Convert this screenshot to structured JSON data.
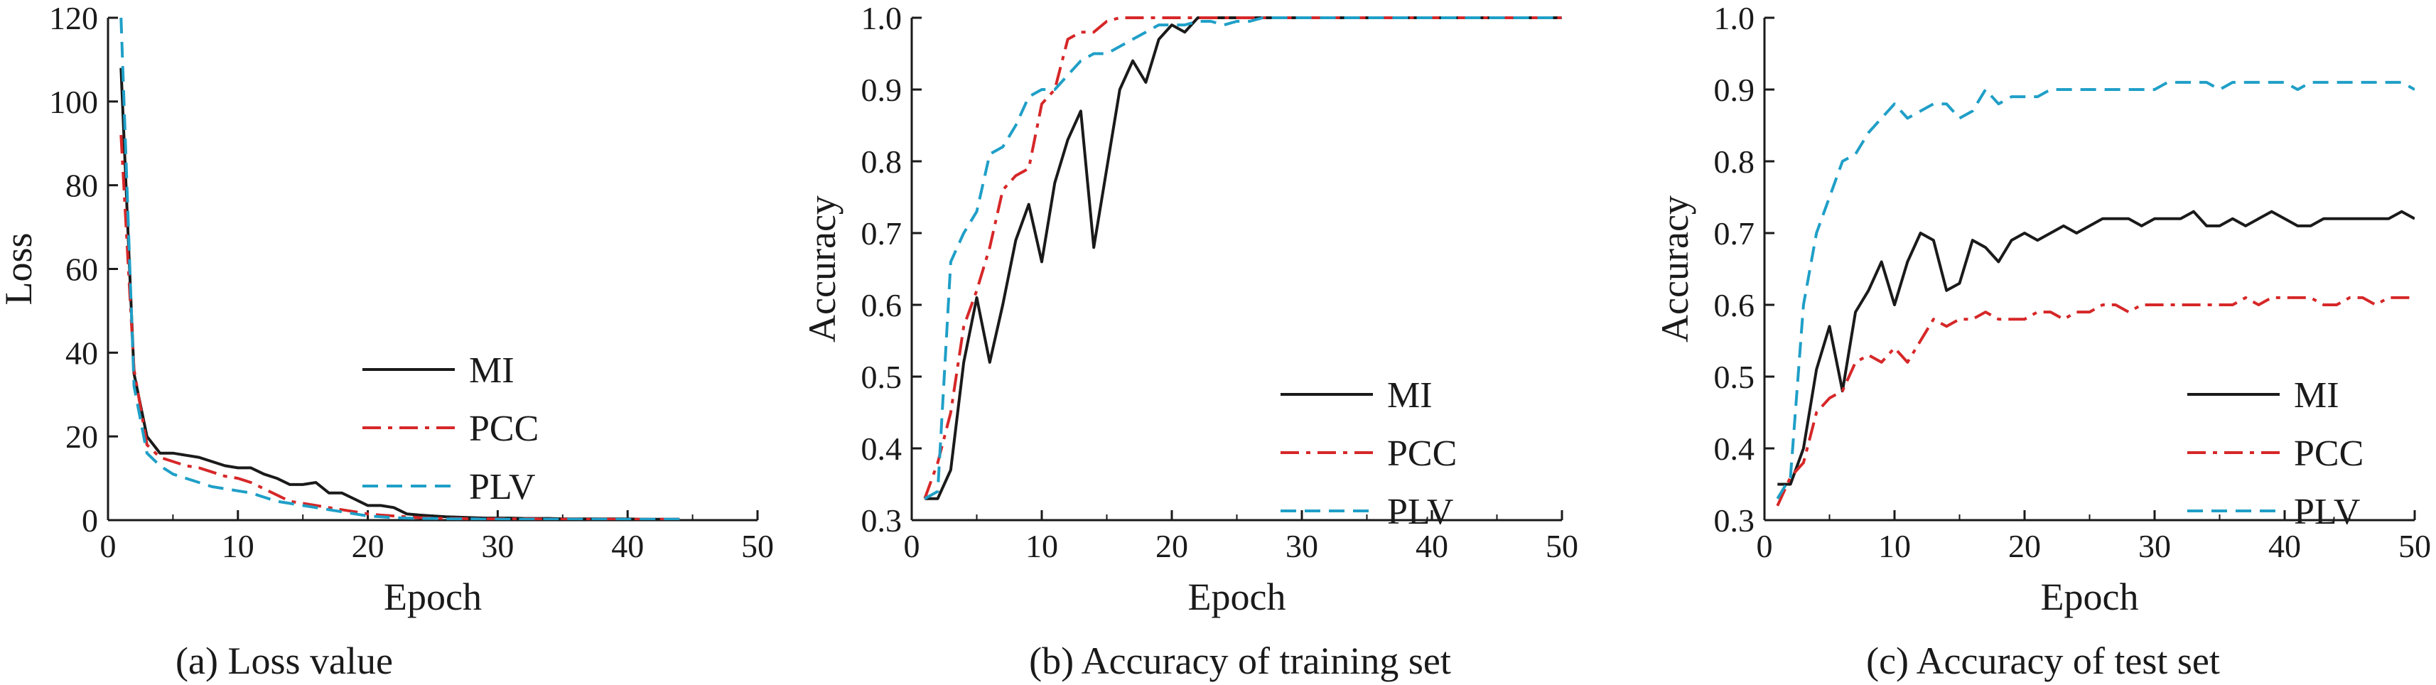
{
  "chart_data": [
    {
      "type": "line",
      "caption": "(a) Loss value",
      "xlabel": "Epoch",
      "ylabel": "Loss",
      "xlim": [
        0,
        50
      ],
      "ylim": [
        0,
        120
      ],
      "xticks": [
        0,
        10,
        20,
        30,
        40,
        50
      ],
      "yticks": [
        0,
        20,
        40,
        60,
        80,
        100,
        120
      ],
      "grid": false,
      "legend": "bottom-right",
      "series": [
        {
          "name": "MI",
          "color": "#1a1a1a",
          "dash": "solid",
          "x": [
            1,
            2,
            3,
            4,
            5,
            6,
            7,
            8,
            9,
            10,
            11,
            12,
            13,
            14,
            15,
            16,
            17,
            18,
            19,
            20,
            21,
            22,
            23,
            24,
            25,
            26,
            27,
            28,
            29,
            30,
            31,
            32,
            33,
            34,
            35,
            36,
            37,
            38,
            39,
            40,
            41,
            42,
            43,
            44
          ],
          "y": [
            108,
            35,
            20,
            16,
            16,
            15.5,
            15,
            14,
            13,
            12.5,
            12.5,
            11,
            10,
            8.5,
            8.5,
            9,
            6.5,
            6.5,
            5,
            3.5,
            3.5,
            3,
            1.5,
            1.2,
            1,
            0.8,
            0.7,
            0.6,
            0.5,
            0.5,
            0.5,
            0.4,
            0.4,
            0.4,
            0.3,
            0.3,
            0.3,
            0.3,
            0.3,
            0.3,
            0.2,
            0.2,
            0.2,
            0.2
          ]
        },
        {
          "name": "PCC",
          "color": "#d62728",
          "dash": "dashdot",
          "x": [
            1,
            2,
            3,
            4,
            5,
            6,
            7,
            8,
            9,
            10,
            11,
            12,
            13,
            14,
            15,
            16,
            17,
            18,
            19,
            20,
            21,
            22,
            23,
            24,
            25,
            26,
            27,
            28,
            29,
            30,
            31,
            32,
            33,
            34,
            35,
            36,
            37,
            38,
            39,
            40,
            41,
            42,
            43,
            44
          ],
          "y": [
            92,
            36,
            18,
            15,
            14,
            13,
            12.5,
            11.5,
            10.5,
            10,
            9,
            7.5,
            6,
            4.5,
            4,
            3.5,
            3,
            2.5,
            2,
            1.5,
            1.2,
            1,
            0.8,
            0.6,
            0.5,
            0.4,
            0.4,
            0.3,
            0.3,
            0.3,
            0.3,
            0.3,
            0.3,
            0.2,
            0.2,
            0.2,
            0.2,
            0.2,
            0.2,
            0.2,
            0.2,
            0.2,
            0.2,
            0.2
          ]
        },
        {
          "name": "PLV",
          "color": "#1f9fc7",
          "dash": "dashed",
          "x": [
            1,
            2,
            3,
            4,
            5,
            6,
            7,
            8,
            9,
            10,
            11,
            12,
            13,
            14,
            15,
            16,
            17,
            18,
            19,
            20,
            21,
            22,
            23,
            24,
            25,
            26,
            27,
            28,
            29,
            30,
            31,
            32,
            33,
            34,
            35,
            36,
            37,
            38,
            39,
            40,
            41,
            42,
            43,
            44
          ],
          "y": [
            120,
            32,
            16,
            13,
            11,
            10,
            9,
            8,
            7.5,
            7,
            6.5,
            5.5,
            4.5,
            4,
            3.5,
            3,
            2.5,
            2,
            1.5,
            1,
            0.8,
            0.6,
            0.5,
            0.4,
            0.4,
            0.3,
            0.3,
            0.3,
            0.2,
            0.2,
            0.2,
            0.2,
            0.2,
            0.2,
            0.2,
            0.2,
            0.2,
            0.2,
            0.2,
            0.2,
            0.2,
            0.2,
            0.2,
            0.2
          ]
        }
      ]
    },
    {
      "type": "line",
      "caption": "(b) Accuracy of training set",
      "xlabel": "Epoch",
      "ylabel": "Accuracy",
      "xlim": [
        0,
        50
      ],
      "ylim": [
        0.3,
        1.0
      ],
      "xticks": [
        0,
        10,
        20,
        30,
        40,
        50
      ],
      "yticks": [
        "0.3",
        "0.4",
        "0.5",
        "0.6",
        "0.7",
        "0.8",
        "0.9",
        "1.0"
      ],
      "grid": false,
      "legend": "bottom-right",
      "series": [
        {
          "name": "MI",
          "color": "#1a1a1a",
          "dash": "solid",
          "x": [
            1,
            2,
            3,
            4,
            5,
            6,
            7,
            8,
            9,
            10,
            11,
            12,
            13,
            14,
            15,
            16,
            17,
            18,
            19,
            20,
            21,
            22,
            23,
            24,
            25,
            26,
            27,
            28,
            29,
            30,
            31,
            32,
            33,
            34,
            35,
            36,
            37,
            38,
            39,
            40,
            41,
            42,
            43,
            44,
            45,
            46,
            47,
            48,
            49,
            50
          ],
          "y": [
            0.33,
            0.33,
            0.37,
            0.52,
            0.61,
            0.52,
            0.6,
            0.69,
            0.74,
            0.66,
            0.77,
            0.83,
            0.87,
            0.68,
            0.79,
            0.9,
            0.94,
            0.91,
            0.97,
            0.99,
            0.98,
            1.0,
            1.0,
            1.0,
            1.0,
            1.0,
            1.0,
            1.0,
            1.0,
            1.0,
            1.0,
            1.0,
            1.0,
            1.0,
            1.0,
            1.0,
            1.0,
            1.0,
            1.0,
            1.0,
            1.0,
            1.0,
            1.0,
            1.0,
            1.0,
            1.0,
            1.0,
            1.0,
            1.0,
            1.0
          ]
        },
        {
          "name": "PCC",
          "color": "#d62728",
          "dash": "dashdot",
          "x": [
            1,
            2,
            3,
            4,
            5,
            6,
            7,
            8,
            9,
            10,
            11,
            12,
            13,
            14,
            15,
            16,
            17,
            18,
            19,
            20,
            21,
            22,
            23,
            24,
            25,
            26,
            27,
            28,
            29,
            30,
            31,
            32,
            33,
            34,
            35,
            36,
            37,
            38,
            39,
            40,
            41,
            42,
            43,
            44,
            45,
            46,
            47,
            48,
            49,
            50
          ],
          "y": [
            0.33,
            0.38,
            0.45,
            0.57,
            0.62,
            0.68,
            0.76,
            0.78,
            0.79,
            0.88,
            0.9,
            0.97,
            0.98,
            0.98,
            0.995,
            1.0,
            1.0,
            1.0,
            1.0,
            1.0,
            1.0,
            1.0,
            1.0,
            1.0,
            1.0,
            1.0,
            1.0,
            1.0,
            1.0,
            1.0,
            1.0,
            1.0,
            1.0,
            1.0,
            1.0,
            1.0,
            1.0,
            1.0,
            1.0,
            1.0,
            1.0,
            1.0,
            1.0,
            1.0,
            1.0,
            1.0,
            1.0,
            1.0,
            1.0,
            1.0
          ]
        },
        {
          "name": "PLV",
          "color": "#1f9fc7",
          "dash": "dashed",
          "x": [
            1,
            2,
            3,
            4,
            5,
            6,
            7,
            8,
            9,
            10,
            11,
            12,
            13,
            14,
            15,
            16,
            17,
            18,
            19,
            20,
            21,
            22,
            23,
            24,
            25,
            26,
            27,
            28,
            29,
            30,
            31,
            32,
            33,
            34,
            35,
            36,
            37,
            38,
            39,
            40,
            41,
            42,
            43,
            44,
            45,
            46,
            47,
            48,
            49,
            50
          ],
          "y": [
            0.33,
            0.34,
            0.66,
            0.7,
            0.73,
            0.81,
            0.82,
            0.85,
            0.89,
            0.9,
            0.9,
            0.92,
            0.94,
            0.95,
            0.95,
            0.96,
            0.97,
            0.98,
            0.99,
            0.99,
            0.99,
            0.995,
            0.995,
            0.99,
            0.995,
            0.995,
            1.0,
            1.0,
            1.0,
            1.0,
            1.0,
            1.0,
            1.0,
            1.0,
            1.0,
            1.0,
            1.0,
            1.0,
            1.0,
            1.0,
            1.0,
            1.0,
            1.0,
            1.0,
            1.0,
            1.0,
            1.0,
            1.0,
            1.0,
            1.0
          ]
        }
      ]
    },
    {
      "type": "line",
      "caption": "(c) Accuracy of test set",
      "xlabel": "Epoch",
      "ylabel": "Accuracy",
      "xlim": [
        0,
        50
      ],
      "ylim": [
        0.3,
        1.0
      ],
      "xticks": [
        0,
        10,
        20,
        30,
        40,
        50
      ],
      "yticks": [
        "0.3",
        "0.4",
        "0.5",
        "0.6",
        "0.7",
        "0.8",
        "0.9",
        "1.0"
      ],
      "grid": false,
      "legend": "bottom-right",
      "series": [
        {
          "name": "MI",
          "color": "#1a1a1a",
          "dash": "solid",
          "x": [
            1,
            2,
            3,
            4,
            5,
            6,
            7,
            8,
            9,
            10,
            11,
            12,
            13,
            14,
            15,
            16,
            17,
            18,
            19,
            20,
            21,
            22,
            23,
            24,
            25,
            26,
            27,
            28,
            29,
            30,
            31,
            32,
            33,
            34,
            35,
            36,
            37,
            38,
            39,
            40,
            41,
            42,
            43,
            44,
            45,
            46,
            47,
            48,
            49,
            50
          ],
          "y": [
            0.35,
            0.35,
            0.4,
            0.51,
            0.57,
            0.48,
            0.59,
            0.62,
            0.66,
            0.6,
            0.66,
            0.7,
            0.69,
            0.62,
            0.63,
            0.69,
            0.68,
            0.66,
            0.69,
            0.7,
            0.69,
            0.7,
            0.71,
            0.7,
            0.71,
            0.72,
            0.72,
            0.72,
            0.71,
            0.72,
            0.72,
            0.72,
            0.73,
            0.71,
            0.71,
            0.72,
            0.71,
            0.72,
            0.73,
            0.72,
            0.71,
            0.71,
            0.72,
            0.72,
            0.72,
            0.72,
            0.72,
            0.72,
            0.73,
            0.72
          ]
        },
        {
          "name": "PCC",
          "color": "#d62728",
          "dash": "dashdot",
          "x": [
            1,
            2,
            3,
            4,
            5,
            6,
            7,
            8,
            9,
            10,
            11,
            12,
            13,
            14,
            15,
            16,
            17,
            18,
            19,
            20,
            21,
            22,
            23,
            24,
            25,
            26,
            27,
            28,
            29,
            30,
            31,
            32,
            33,
            34,
            35,
            36,
            37,
            38,
            39,
            40,
            41,
            42,
            43,
            44,
            45,
            46,
            47,
            48,
            49,
            50
          ],
          "y": [
            0.32,
            0.36,
            0.38,
            0.45,
            0.47,
            0.48,
            0.52,
            0.53,
            0.52,
            0.54,
            0.52,
            0.55,
            0.58,
            0.57,
            0.58,
            0.58,
            0.59,
            0.58,
            0.58,
            0.58,
            0.59,
            0.59,
            0.58,
            0.59,
            0.59,
            0.6,
            0.6,
            0.59,
            0.6,
            0.6,
            0.6,
            0.6,
            0.6,
            0.6,
            0.6,
            0.6,
            0.61,
            0.6,
            0.61,
            0.61,
            0.61,
            0.61,
            0.6,
            0.6,
            0.61,
            0.61,
            0.6,
            0.61,
            0.61,
            0.61
          ]
        },
        {
          "name": "PLV",
          "color": "#1f9fc7",
          "dash": "dashed",
          "x": [
            1,
            2,
            3,
            4,
            5,
            6,
            7,
            8,
            9,
            10,
            11,
            12,
            13,
            14,
            15,
            16,
            17,
            18,
            19,
            20,
            21,
            22,
            23,
            24,
            25,
            26,
            27,
            28,
            29,
            30,
            31,
            32,
            33,
            34,
            35,
            36,
            37,
            38,
            39,
            40,
            41,
            42,
            43,
            44,
            45,
            46,
            47,
            48,
            49,
            50
          ],
          "y": [
            0.33,
            0.36,
            0.6,
            0.7,
            0.75,
            0.8,
            0.81,
            0.84,
            0.86,
            0.88,
            0.86,
            0.87,
            0.88,
            0.88,
            0.86,
            0.87,
            0.9,
            0.88,
            0.89,
            0.89,
            0.89,
            0.9,
            0.9,
            0.9,
            0.9,
            0.9,
            0.9,
            0.9,
            0.9,
            0.9,
            0.91,
            0.91,
            0.91,
            0.91,
            0.9,
            0.91,
            0.91,
            0.91,
            0.91,
            0.91,
            0.9,
            0.91,
            0.91,
            0.91,
            0.91,
            0.91,
            0.91,
            0.91,
            0.91,
            0.9
          ]
        }
      ]
    }
  ]
}
